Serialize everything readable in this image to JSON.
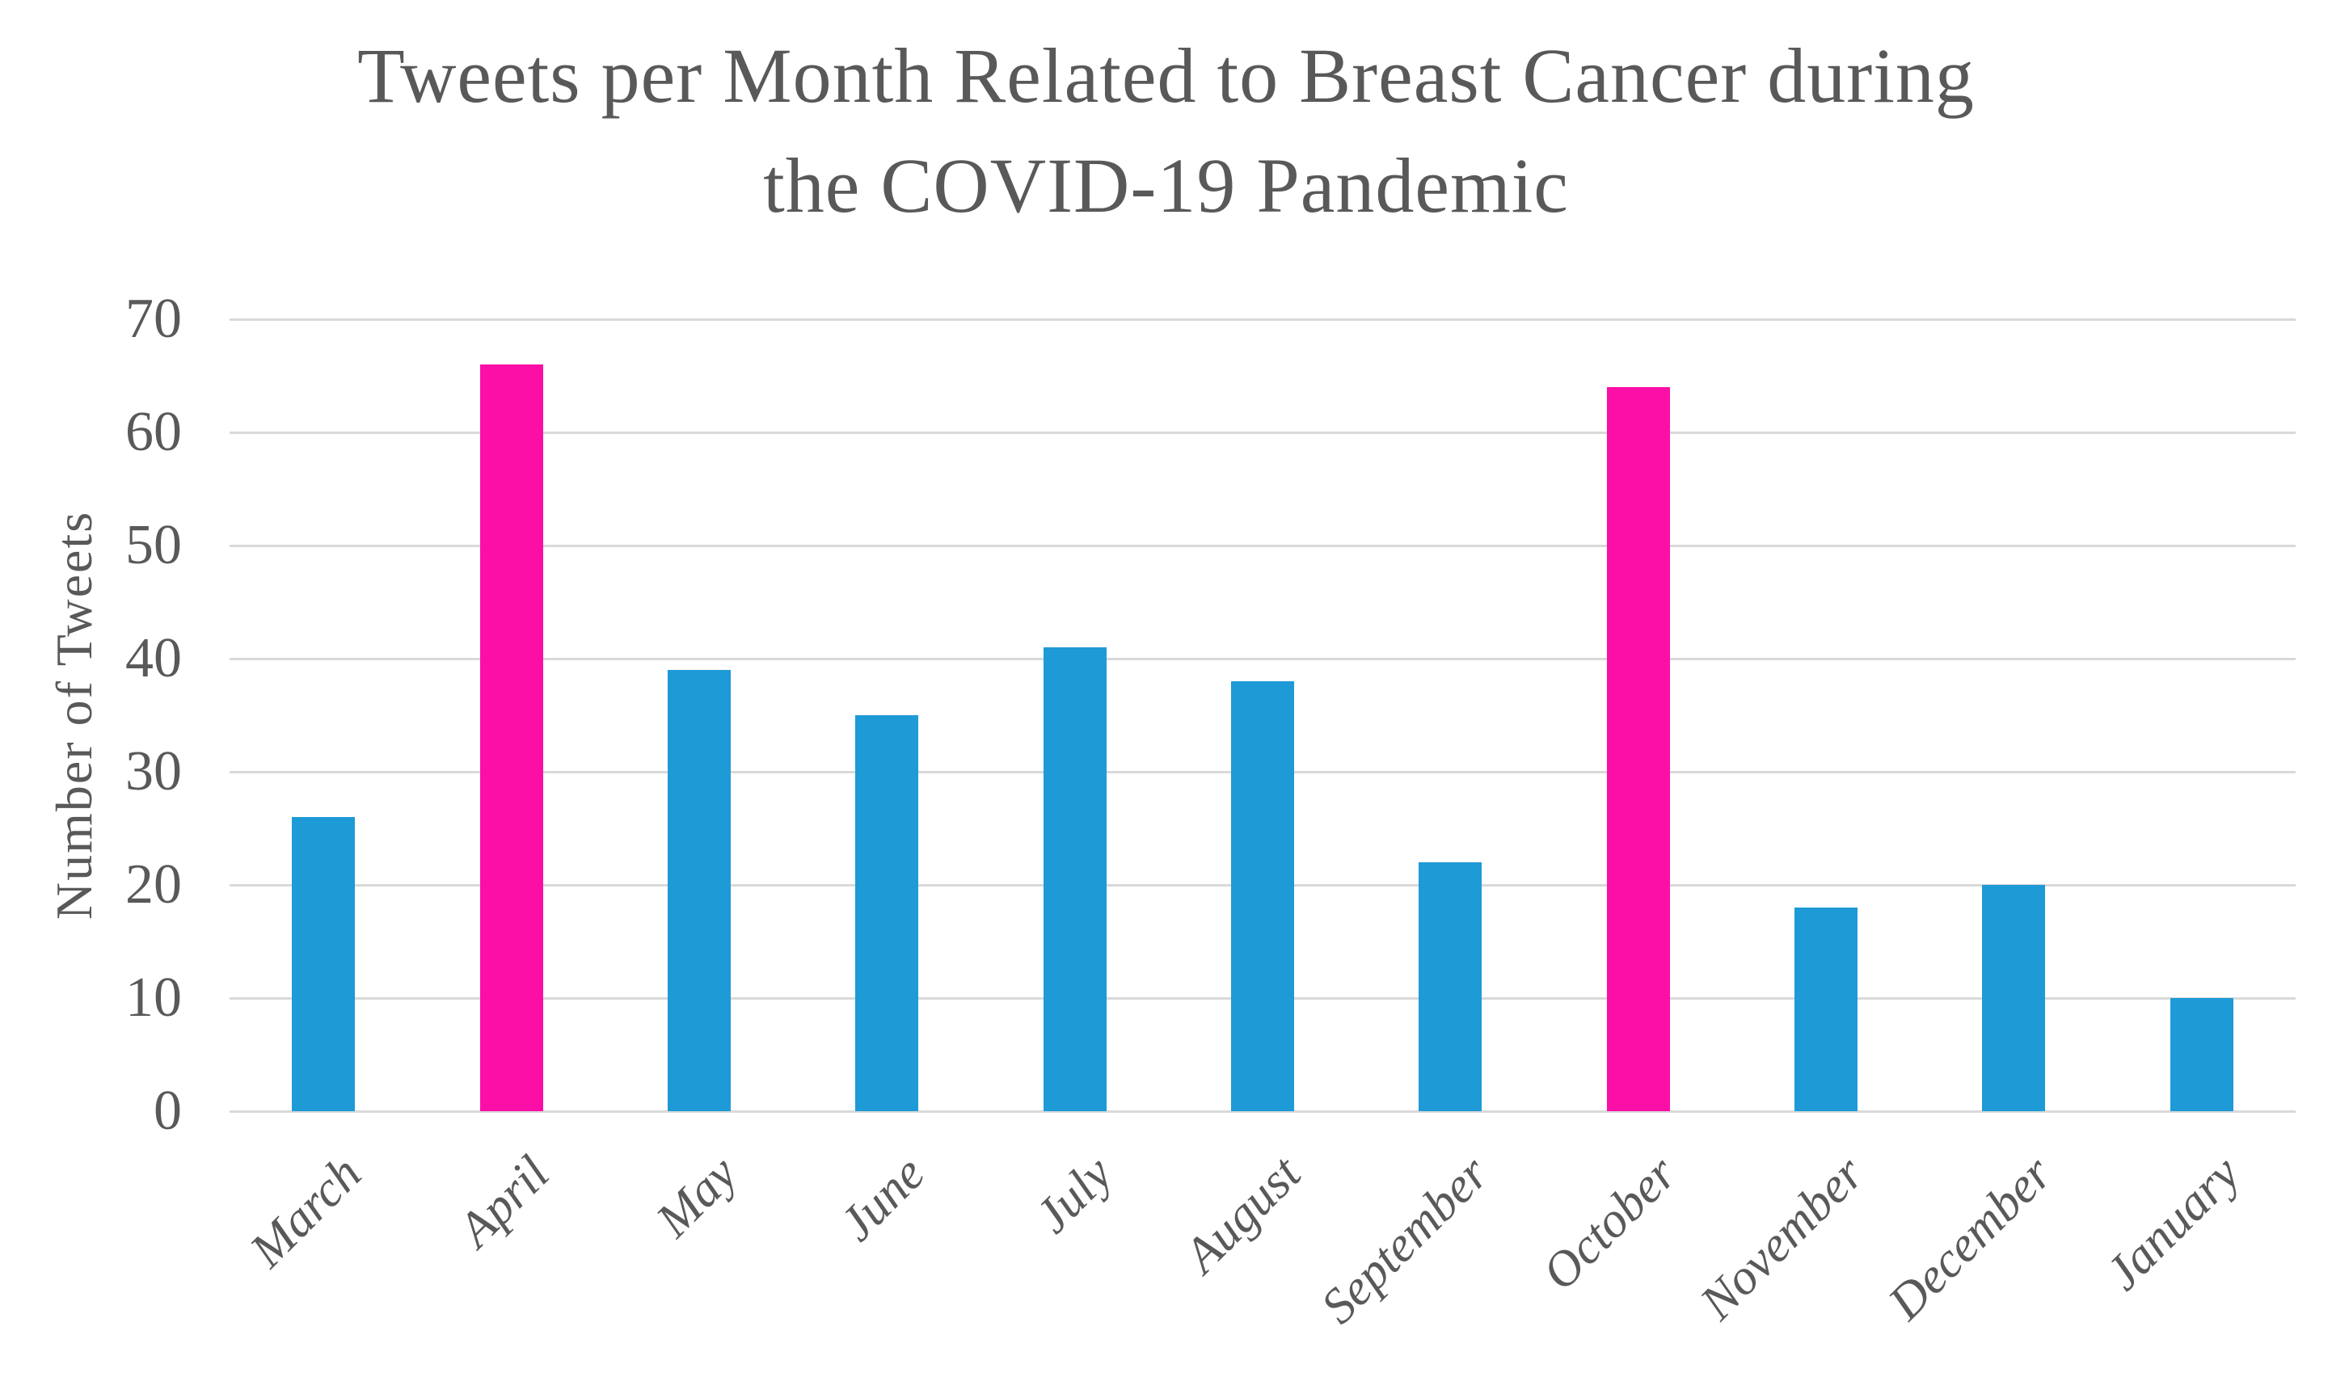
{
  "chart_data": {
    "type": "bar",
    "title": "Tweets per Month Related to Breast Cancer during the COVID-19 Pandemic",
    "title_lines": [
      "Tweets per Month Related to Breast Cancer during",
      "the COVID-19 Pandemic"
    ],
    "ylabel": "Number of Tweets",
    "xlabel": "",
    "categories": [
      "March",
      "April",
      "May",
      "June",
      "July",
      "August",
      "September",
      "October",
      "November",
      "December",
      "January"
    ],
    "values": [
      26,
      66,
      39,
      35,
      41,
      38,
      22,
      64,
      18,
      20,
      10
    ],
    "highlighted_categories": [
      "April",
      "October"
    ],
    "ylim": [
      0,
      70
    ],
    "yticks": [
      0,
      10,
      20,
      30,
      40,
      50,
      60,
      70
    ],
    "grid": "horizontal",
    "legend_position": "none",
    "colors": {
      "bar_default": "#1E9AD6",
      "bar_highlight": "#FB0FA6",
      "gridline": "#D9D9D9",
      "axis_text": "#595959",
      "title_text": "#595959"
    }
  }
}
